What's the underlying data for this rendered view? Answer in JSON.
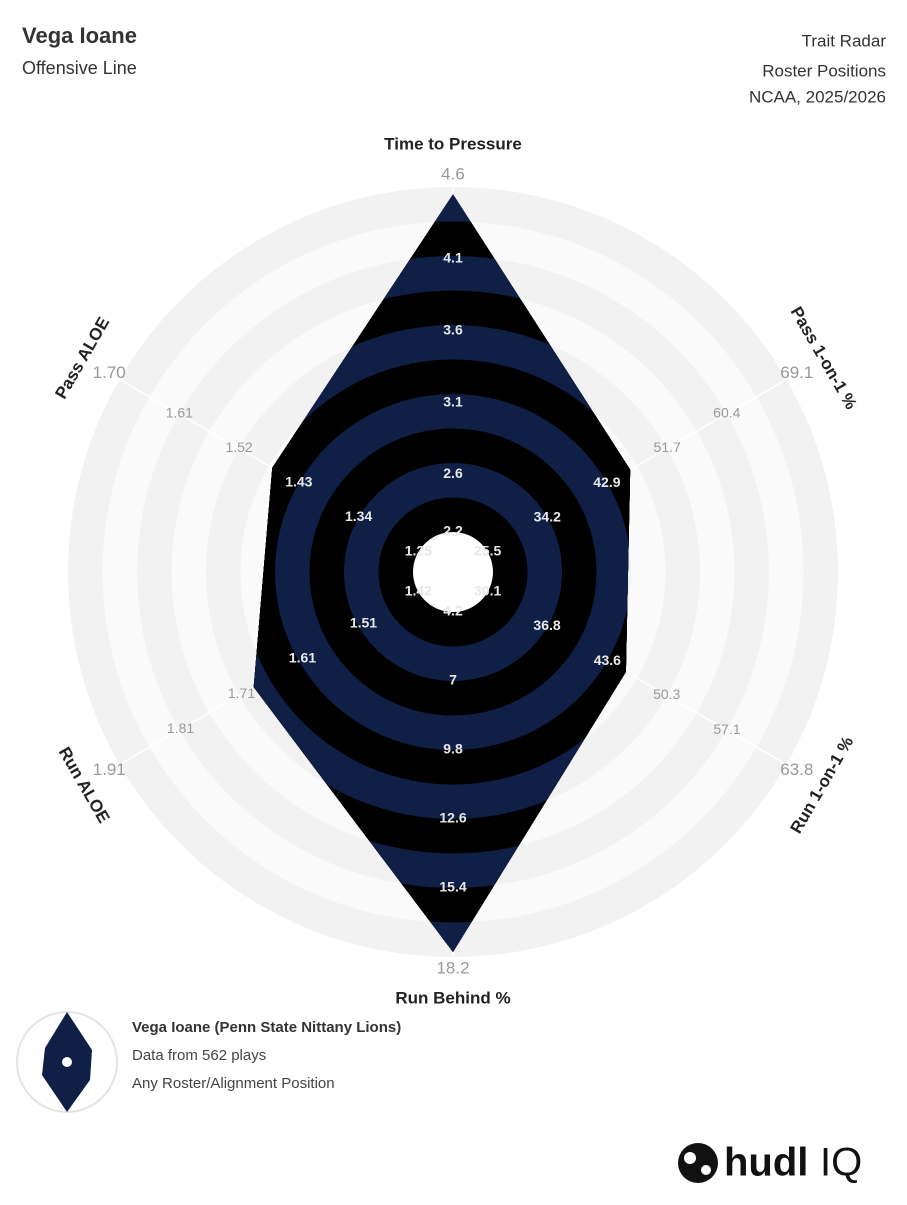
{
  "chart_data": {
    "type": "radar",
    "title": "Vega Ioane",
    "subtitle": "Offensive Line",
    "header_right": [
      "Trait Radar",
      "Roster Positions",
      "NCAA, 2025/2026"
    ],
    "axes": [
      {
        "label": "Time to Pressure",
        "lim": [
          2.2,
          4.6
        ],
        "ticks": [
          2.2,
          2.6,
          3.1,
          3.6,
          4.1,
          4.6
        ]
      },
      {
        "label": "Pass 1-on-1 %",
        "lim": [
          25.5,
          69.1
        ],
        "ticks": [
          25.5,
          34.2,
          42.9,
          51.7,
          60.4,
          69.1
        ]
      },
      {
        "label": "Run 1-on-1 %",
        "lim": [
          30.1,
          63.8
        ],
        "ticks": [
          30.1,
          36.8,
          43.6,
          50.3,
          57.1,
          63.8
        ]
      },
      {
        "label": "Run Behind %",
        "lim": [
          4.2,
          18.2
        ],
        "ticks": [
          4.2,
          7,
          9.8,
          12.6,
          15.4,
          18.2
        ]
      },
      {
        "label": "Run ALOE",
        "lim": [
          1.42,
          1.91
        ],
        "ticks": [
          1.42,
          1.51,
          1.61,
          1.71,
          1.81,
          1.91
        ]
      },
      {
        "label": "Pass ALOE",
        "lim": [
          1.25,
          1.7
        ],
        "ticks": [
          1.25,
          1.34,
          1.43,
          1.52,
          1.61,
          {
            "value": 1.7,
            "label": "1.70"
          }
        ]
      }
    ],
    "series": [
      {
        "name": "Vega Ioane (Penn State Nittany Lions)",
        "color": "#0f1f45",
        "values": [
          4.55,
          46.3,
          45.7,
          18.0,
          1.69,
          1.47
        ]
      }
    ],
    "notes": [
      "Data from 562 plays",
      "Any Roster/Alignment Position"
    ]
  },
  "logo": {
    "name": "hudl",
    "product": "IQ"
  }
}
